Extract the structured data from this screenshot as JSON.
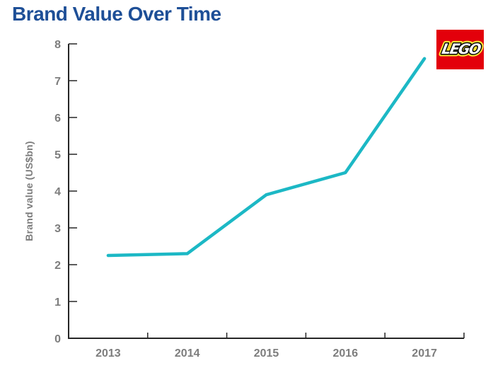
{
  "page": {
    "title": "Brand Value Over Time",
    "title_color": "#1e4f97",
    "background": "#ffffff"
  },
  "logo": {
    "name": "lego-logo",
    "text": "LEGO",
    "background": "#e3000b",
    "letter_fill": "#ffffff",
    "letter_outline": "#000000",
    "outer_outline": "#f6e836"
  },
  "chart_data": {
    "type": "line",
    "title": "Brand Value Over Time",
    "categories": [
      "2013",
      "2014",
      "2015",
      "2016",
      "2017"
    ],
    "series": [
      {
        "name": "Brand value",
        "color": "#1cb8c5",
        "values": [
          2.25,
          2.3,
          3.9,
          4.5,
          7.6
        ]
      }
    ],
    "xlabel": "",
    "ylabel": "Brand value (US$bn)",
    "ylim": [
      0,
      8
    ],
    "yticks": [
      0,
      1,
      2,
      3,
      4,
      5,
      6,
      7,
      8
    ],
    "grid": false,
    "legend": "none",
    "axis_color": "#262626",
    "tick_label_color": "#7d7d7d",
    "line_width": 4.5
  }
}
